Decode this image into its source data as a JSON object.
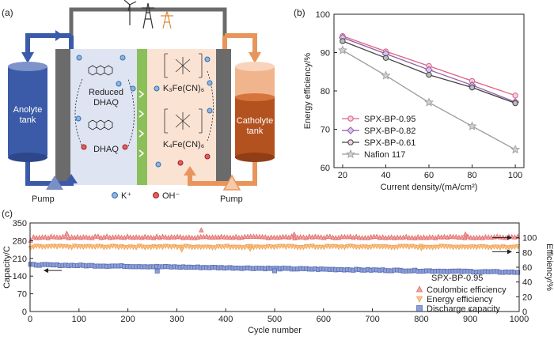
{
  "panel_labels": {
    "a": "(a)",
    "b": "(b)",
    "c": "(c)"
  },
  "schematic": {
    "anolyte_tank": [
      "Anolyte",
      "tank"
    ],
    "catholyte_tank": [
      "Catholyte",
      "tank"
    ],
    "pump_left": "Pump",
    "pump_right": "Pump",
    "reduced_dhaq": [
      "Reduced",
      "DHAQ"
    ],
    "dhaq": "DHAQ",
    "k3fe": "K₃Fe(CN)₆",
    "k4fe": "K₄Fe(CN)₆",
    "legend_k": "K⁺",
    "legend_oh": "OH⁻",
    "colors": {
      "anolyte": "#3b5ba9",
      "catholyte": "#e8955c",
      "electrode": "#6b6b6b",
      "membrane": "#8bbf5a",
      "left_cell": "#dfe4f2",
      "right_cell": "#fbe3d4"
    }
  },
  "chart_data": [
    {
      "type": "line",
      "title": "",
      "xlabel": "Current density/(mA/cm²)",
      "ylabel": "Energy efficiency/%",
      "x": [
        20,
        40,
        60,
        80,
        100
      ],
      "xticks": [
        20,
        40,
        60,
        80,
        100
      ],
      "xlim": [
        16,
        104
      ],
      "ylim": [
        60,
        100
      ],
      "yticks": [
        60,
        70,
        80,
        90,
        100
      ],
      "legend_position": "bottom-left",
      "series": [
        {
          "name": "SPX-BP-0.95",
          "values": [
            94.3,
            90.3,
            86.5,
            82.6,
            78.8
          ],
          "color": "#e0607e",
          "marker": "circle"
        },
        {
          "name": "SPX-BP-0.82",
          "values": [
            93.9,
            89.7,
            85.5,
            81.5,
            77.1
          ],
          "color": "#8e5aa8",
          "marker": "diamond"
        },
        {
          "name": "SPX-BP-0.61",
          "values": [
            93.0,
            88.6,
            84.2,
            80.9,
            76.8
          ],
          "color": "#444444",
          "marker": "circle"
        },
        {
          "name": "Nafion 117",
          "values": [
            90.6,
            84.0,
            77.0,
            70.8,
            64.7
          ],
          "color": "#9a9a9a",
          "marker": "star"
        }
      ]
    },
    {
      "type": "scatter",
      "title": "",
      "xlabel": "Cycle number",
      "ylabel_left": "Capacity/C",
      "ylabel_right": "Efficiency/%",
      "xlim": [
        0,
        1000
      ],
      "xticks": [
        0,
        100,
        200,
        300,
        400,
        500,
        600,
        700,
        800,
        900,
        1000
      ],
      "ylim_left": [
        0,
        350
      ],
      "yticks_left": [
        0,
        70,
        140,
        210,
        280,
        350
      ],
      "ylim_right": [
        0,
        120
      ],
      "yticks_right": [
        0,
        20,
        40,
        60,
        80,
        100
      ],
      "annotation": "SPX-BP-0.95",
      "legend_position": "bottom-right",
      "series": [
        {
          "name": "Coulombic efficiency",
          "axis": "right",
          "color": "#e06b6b",
          "marker": "triangle-up",
          "mean": 100.5,
          "first": 96,
          "outliers": [
            [
              75,
              105.5
            ],
            [
              350,
              110
            ],
            [
              540,
              104.5
            ],
            [
              890,
              104.5
            ]
          ]
        },
        {
          "name": "Energy efficiency",
          "axis": "right",
          "color": "#f0a050",
          "marker": "triangle-down",
          "mean": 88,
          "first": 86,
          "outliers": [
            [
              310,
              84
            ],
            [
              450,
              85
            ],
            [
              800,
              86
            ]
          ]
        },
        {
          "name": "Discharge capacity",
          "axis": "left",
          "color": "#5a6fb5",
          "marker": "square",
          "start": 185,
          "end": 155,
          "outliers": [
            [
              260,
              160
            ],
            [
              500,
              161
            ]
          ]
        }
      ]
    }
  ]
}
